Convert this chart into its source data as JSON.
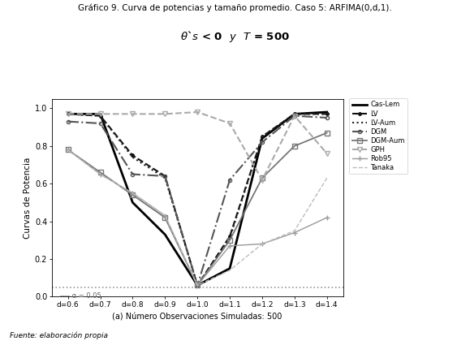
{
  "title_line1": "Gráfico 9. Curva de potencias y tamaño promedio. Caso 5: ARFIMA(0,d,1).",
  "title_line2": "θ`s < 0  y  T = 500",
  "xlabel": "(a) Número Observaciones Simuladas: 500",
  "ylabel": "Curvas de Potencia",
  "x_values": [
    0.6,
    0.7,
    0.8,
    0.9,
    1.0,
    1.1,
    1.2,
    1.3,
    1.4
  ],
  "x_labels": [
    "d=0.6",
    "d=0.7",
    "d=0.8",
    "d=0.9",
    "d=1.0",
    "d=1.1",
    "d=1.2",
    "d=1.3",
    "d=1.4"
  ],
  "ylim": [
    0.0,
    1.05
  ],
  "yticks": [
    0.0,
    0.2,
    0.4,
    0.6,
    0.8,
    1.0
  ],
  "alpha_level": 0.05,
  "series": {
    "Cas-Lem": {
      "values": [
        0.97,
        0.97,
        0.5,
        0.33,
        0.06,
        0.15,
        0.84,
        0.97,
        0.98
      ],
      "color": "#000000",
      "linestyle": "-",
      "linewidth": 2.0,
      "marker": "None",
      "markersize": 4
    },
    "LV": {
      "values": [
        0.97,
        0.96,
        0.75,
        0.64,
        0.06,
        0.32,
        0.85,
        0.97,
        0.97
      ],
      "color": "#111111",
      "linestyle": "--",
      "linewidth": 1.5,
      "marker": ".",
      "markersize": 5
    },
    "LV-Aum": {
      "values": [
        0.97,
        0.96,
        0.74,
        0.63,
        0.06,
        0.31,
        0.85,
        0.97,
        0.97
      ],
      "color": "#222222",
      "linestyle": ":",
      "linewidth": 1.5,
      "marker": "None",
      "markersize": 4
    },
    "DGM": {
      "values": [
        0.93,
        0.92,
        0.65,
        0.64,
        0.06,
        0.62,
        0.82,
        0.96,
        0.95
      ],
      "color": "#555555",
      "linestyle": "-.",
      "linewidth": 1.5,
      "marker": "o",
      "markersize": 3,
      "markerfacecolor": "none"
    },
    "DGM-Aum": {
      "values": [
        0.78,
        0.66,
        0.54,
        0.42,
        0.06,
        0.3,
        0.63,
        0.8,
        0.87
      ],
      "color": "#777777",
      "linestyle": "-",
      "linewidth": 1.3,
      "marker": "s",
      "markersize": 4,
      "markerfacecolor": "none"
    },
    "GPH": {
      "values": [
        0.97,
        0.97,
        0.97,
        0.97,
        0.98,
        0.92,
        0.62,
        0.96,
        0.76
      ],
      "color": "#aaaaaa",
      "linestyle": "--",
      "linewidth": 1.5,
      "marker": "v",
      "markersize": 5,
      "markerfacecolor": "none"
    },
    "Rob95": {
      "values": [
        0.78,
        0.65,
        0.55,
        0.43,
        0.06,
        0.27,
        0.28,
        0.34,
        0.42
      ],
      "color": "#999999",
      "linestyle": "-",
      "linewidth": 1.0,
      "marker": "+",
      "markersize": 4
    },
    "Tanaka": {
      "values": [
        0.78,
        0.65,
        0.55,
        0.43,
        0.06,
        0.14,
        0.28,
        0.35,
        0.63
      ],
      "color": "#bbbbbb",
      "linestyle": "--",
      "linewidth": 1.0,
      "marker": "None",
      "markersize": 4
    }
  }
}
